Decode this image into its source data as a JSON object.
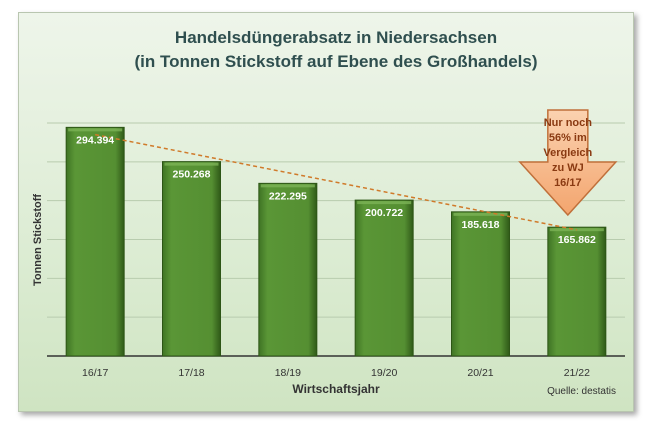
{
  "chart_data": {
    "type": "bar",
    "title": "Handelsdüngerabsatz in Niedersachsen",
    "subtitle": "(in Tonnen Stickstoff auf Ebene des Großhandels)",
    "xlabel": "Wirtschaftsjahr",
    "ylabel": "Tonnen Stickstoff",
    "categories": [
      "16/17",
      "17/18",
      "18/19",
      "19/20",
      "20/21",
      "21/22"
    ],
    "values": [
      294394,
      250268,
      222295,
      200722,
      185618,
      165862
    ],
    "data_labels": [
      "294.394",
      "250.268",
      "222.295",
      "200.722",
      "185.618",
      "165.862"
    ],
    "ylim": [
      0,
      300000
    ],
    "ytick_step": 50000,
    "y_tick_labels_shown": false,
    "grid": true,
    "trendline": "linear, dashed",
    "annotation": {
      "text_lines": [
        "Nur noch",
        "56% im",
        "Vergleich",
        "zu WJ",
        "16/17"
      ],
      "shape": "down-arrow",
      "points_to": "21/22"
    },
    "source": "Quelle: destatis",
    "colors": {
      "bar": "#4e8a2e",
      "bar_dark": "#3a6b20",
      "trendline": "#d07a2a",
      "arrow": "#f6b88a",
      "arrow_border": "#c0703a",
      "arrow_text": "#8a3a12",
      "title": "#2f4f4f"
    }
  }
}
